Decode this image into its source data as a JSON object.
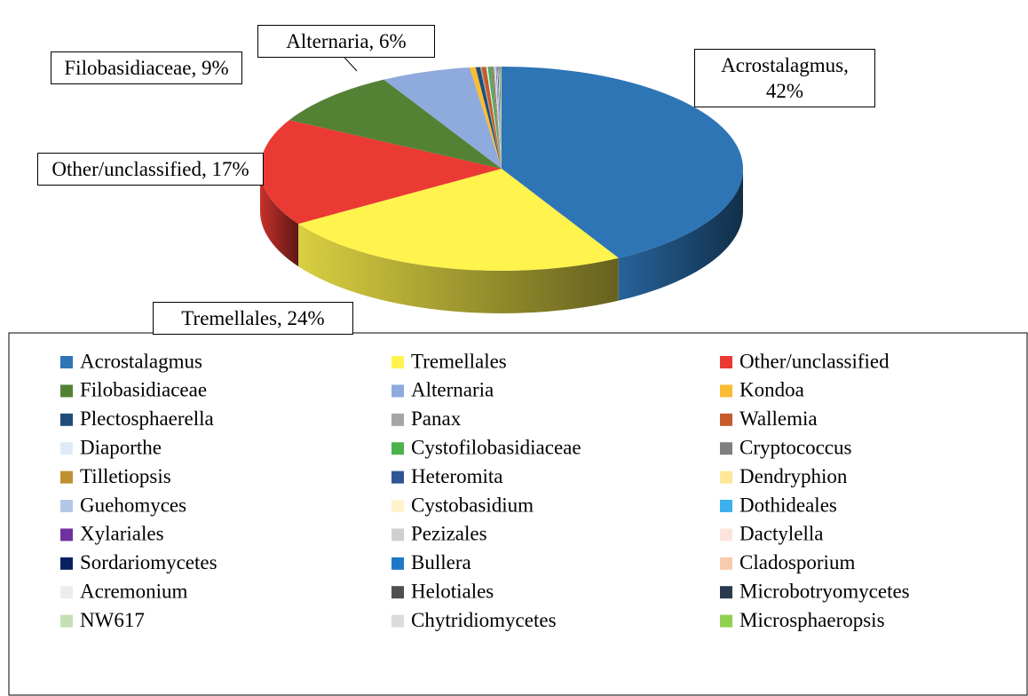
{
  "chart_data": {
    "type": "pie",
    "categories": [
      "Acrostalagmus",
      "Tremellales",
      "Other/unclassified",
      "Filobasidiaceae",
      "Alternaria",
      "Kondoa",
      "Plectosphaerella",
      "Panax",
      "Wallemia",
      "Diaporthe",
      "Cystofilobasidiaceae",
      "Cryptococcus",
      "Tilletiopsis",
      "Heteromita",
      "Dendryphion",
      "Guehomyces",
      "Cystobasidium",
      "Dothideales",
      "Xylariales",
      "Pezizales",
      "Dactylella",
      "Sordariomycetes",
      "Bullera",
      "Cladosporium",
      "Acremonium",
      "Helotiales",
      "Microbotryomycetes",
      "NW617",
      "Chytridiomycetes",
      "Microsphaeropsis"
    ],
    "values": [
      42,
      24,
      17,
      9,
      6,
      0.4,
      0.3,
      0.1,
      0.3,
      0.1,
      0.2,
      0.1,
      0.05,
      0.05,
      0.05,
      0.05,
      0.03,
      0.03,
      0.03,
      0.03,
      0.03,
      0.03,
      0.03,
      0.03,
      0.03,
      0.03,
      0.03,
      0.03,
      0.03,
      0.03
    ],
    "value_labels": [
      "Acrostalagmus, 42%",
      "Tremellales, 24%",
      "Other/unclassified, 17%",
      "Filobasidiaceae, 9%",
      "Alternaria, 6%",
      null,
      null,
      null,
      null,
      null,
      null,
      null,
      null,
      null,
      null,
      null,
      null,
      null,
      null,
      null,
      null,
      null,
      null,
      null,
      null,
      null,
      null,
      null,
      null,
      null
    ],
    "colors": [
      "#2e75b6",
      "#fff34d",
      "#ea3a33",
      "#548235",
      "#8faadc",
      "#fbbc33",
      "#1f4e79",
      "#a5a5a5",
      "#c55a2b",
      "#deebf7",
      "#4cb24c",
      "#7f7f7f",
      "#bf9033",
      "#2f5597",
      "#ffe699",
      "#b4c7e7",
      "#fff2cc",
      "#3cb0ee",
      "#7030a0",
      "#d0d0d0",
      "#fce4dc",
      "#0b2060",
      "#1f77c8",
      "#f8cbad",
      "#ededed",
      "#505050",
      "#2a3a4e",
      "#c5e0b4",
      "#dcdcdc",
      "#92d050"
    ],
    "legend": "bottom"
  }
}
